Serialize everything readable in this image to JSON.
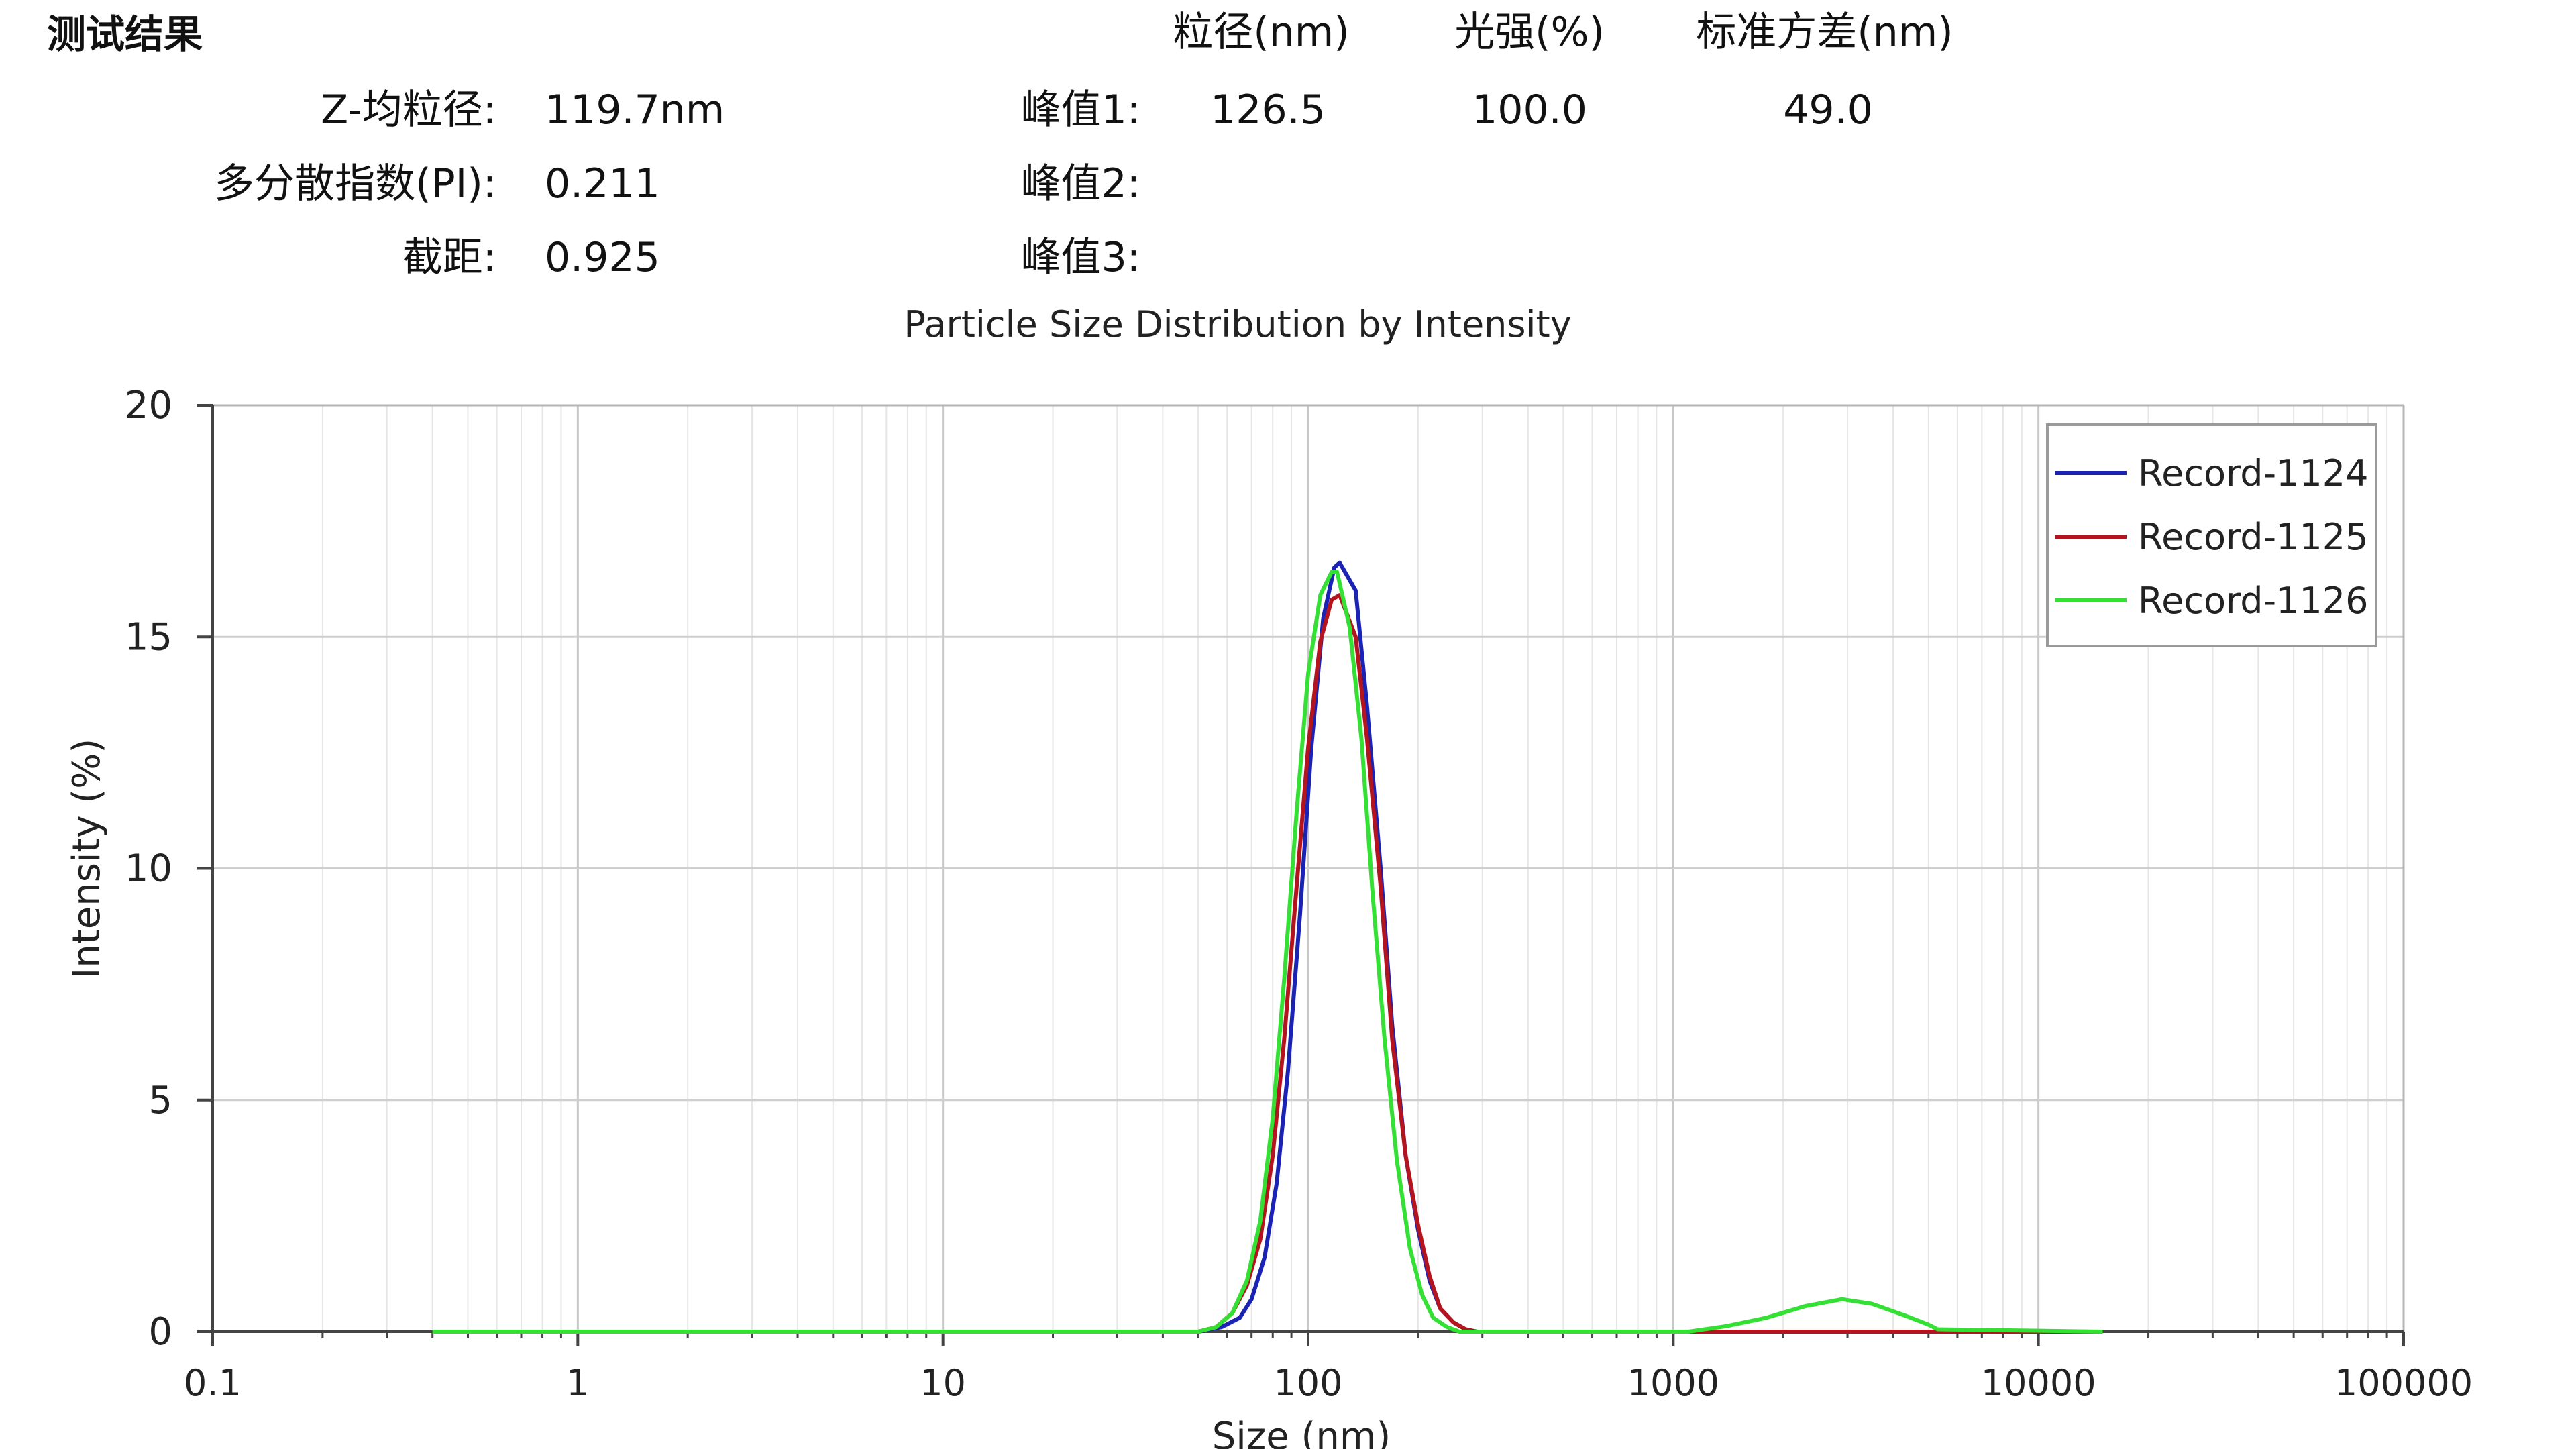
{
  "results": {
    "heading": "测试结果",
    "z_avg_label": "Z-均粒径:",
    "z_avg_value": "119.7nm",
    "pdi_label": "多分散指数(PI):",
    "pdi_value": "0.211",
    "intercept_label": "截距:",
    "intercept_value": "0.925",
    "col_size": "粒径(nm)",
    "col_intensity": "光强(%)",
    "col_stddev": "标准方差(nm)",
    "peak1_label": "峰值1:",
    "peak1_size": "126.5",
    "peak1_intensity": "100.0",
    "peak1_stddev": "49.0",
    "peak2_label": "峰值2:",
    "peak3_label": "峰值3:"
  },
  "chart_data": {
    "type": "line",
    "title": "Particle Size Distribution by Intensity",
    "xlabel": "Size (nm)",
    "ylabel": "Intensity (%)",
    "xscale": "log",
    "xlim": [
      0.1,
      100000
    ],
    "ylim": [
      0,
      20
    ],
    "xticks": [
      0.1,
      1,
      10,
      100,
      1000,
      10000,
      100000
    ],
    "xtick_labels": [
      "0.1",
      "1",
      "10",
      "100",
      "1000",
      "10000",
      "100000"
    ],
    "yticks": [
      0,
      5,
      10,
      15,
      20
    ],
    "ytick_labels": [
      "0",
      "5",
      "10",
      "15",
      "20"
    ],
    "grid": true,
    "legend": "top-right",
    "series": [
      {
        "name": "Record-1124",
        "color": "#1a23b4",
        "x": [
          0.4,
          50,
          58,
          65,
          70,
          76,
          82,
          88,
          95,
          102,
          110,
          118,
          122,
          135,
          145,
          158,
          170,
          185,
          200,
          215,
          230,
          250,
          270,
          290,
          330,
          15000
        ],
        "y": [
          0,
          0,
          0.1,
          0.3,
          0.7,
          1.6,
          3.2,
          5.6,
          9.0,
          12.6,
          15.4,
          16.5,
          16.6,
          16.0,
          13.5,
          10.0,
          6.6,
          3.8,
          2.2,
          1.1,
          0.5,
          0.2,
          0.05,
          0,
          0,
          0
        ]
      },
      {
        "name": "Record-1125",
        "color": "#b4141e",
        "x": [
          0.4,
          50,
          56,
          62,
          68,
          74,
          80,
          86,
          93,
          100,
          108,
          116,
          122,
          135,
          145,
          158,
          170,
          185,
          200,
          215,
          230,
          250,
          270,
          290,
          330,
          1300,
          2500,
          4000,
          5300,
          15000
        ],
        "y": [
          0,
          0,
          0.1,
          0.4,
          1.0,
          2.0,
          3.8,
          6.3,
          9.6,
          12.6,
          14.9,
          15.8,
          15.9,
          15.0,
          12.8,
          9.6,
          6.3,
          3.8,
          2.3,
          1.2,
          0.5,
          0.2,
          0.05,
          0,
          0,
          0,
          0,
          0,
          0,
          0
        ]
      },
      {
        "name": "Record-1126",
        "color": "#34e034",
        "x": [
          0.4,
          50,
          56,
          62,
          68,
          74,
          80,
          86,
          93,
          100,
          108,
          116,
          120,
          130,
          140,
          150,
          162,
          175,
          190,
          205,
          220,
          240,
          260,
          300,
          1100,
          1400,
          1800,
          2300,
          2900,
          3500,
          4300,
          5000,
          5300,
          15000
        ],
        "y": [
          0,
          0,
          0.1,
          0.4,
          1.1,
          2.4,
          4.6,
          7.6,
          11.2,
          14.2,
          15.9,
          16.4,
          16.4,
          15.2,
          12.8,
          9.5,
          6.3,
          3.7,
          1.8,
          0.8,
          0.3,
          0.1,
          0,
          0,
          0,
          0.12,
          0.3,
          0.55,
          0.7,
          0.6,
          0.35,
          0.15,
          0.05,
          0
        ]
      }
    ]
  }
}
